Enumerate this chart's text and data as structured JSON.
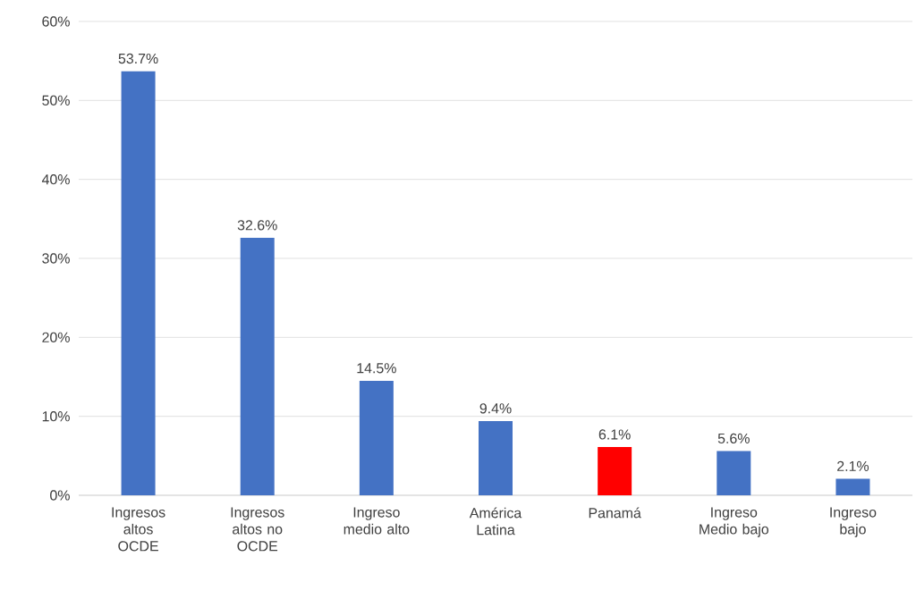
{
  "chart_data": {
    "type": "bar",
    "categories": [
      "Ingresos altos OCDE",
      "Ingresos altos no OCDE",
      "Ingreso medio alto",
      "América Latina",
      "Panamá",
      "Ingreso Medio bajo",
      "Ingreso bajo"
    ],
    "values": [
      53.7,
      32.6,
      14.5,
      9.4,
      6.1,
      5.6,
      2.1
    ],
    "colors": [
      "#4472c4",
      "#4472c4",
      "#4472c4",
      "#4472c4",
      "#ff0000",
      "#4472c4",
      "#4472c4"
    ],
    "value_labels": [
      "53.7%",
      "32.6%",
      "14.5%",
      "9.4%",
      "6.1%",
      "5.6%",
      "2.1%"
    ],
    "ylim": [
      0,
      60
    ],
    "yticks": [
      {
        "value": 0,
        "label": "0%"
      },
      {
        "value": 10,
        "label": "10%"
      },
      {
        "value": 20,
        "label": "20%"
      },
      {
        "value": 30,
        "label": "30%"
      },
      {
        "value": 40,
        "label": "40%"
      },
      {
        "value": 50,
        "label": "50%"
      },
      {
        "value": 60,
        "label": "60%"
      }
    ],
    "grid": "y"
  }
}
